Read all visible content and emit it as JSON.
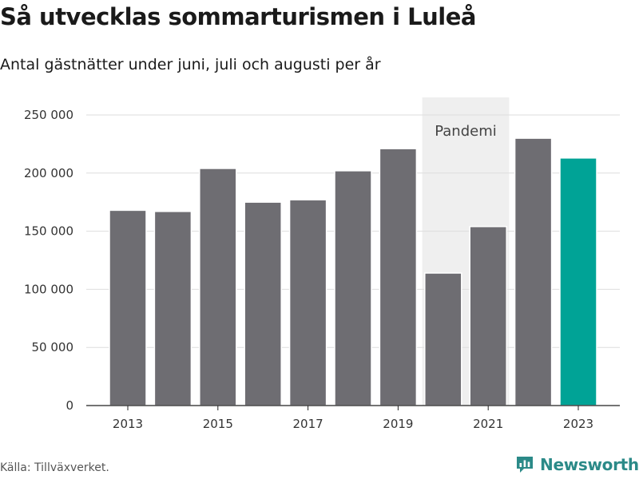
{
  "page": {
    "title": "Så utvecklas sommarturismen i Luleå",
    "subtitle": "Antal gästnätter under juni, juli och augusti per år",
    "source": "Källa: Tillväxverket.",
    "brand": "Newsworthy"
  },
  "colors": {
    "bar": "#6e6d72",
    "highlight": "#00a396",
    "shade": "#efefef",
    "grid": "#dedede",
    "brand": "#2b8a88"
  },
  "chart_data": {
    "type": "bar",
    "title": "Så utvecklas sommarturismen i Luleå",
    "subtitle": "Antal gästnätter under juni, juli och augusti per år",
    "categories": [
      2013,
      2014,
      2015,
      2016,
      2017,
      2018,
      2019,
      2020,
      2021,
      2022,
      2023
    ],
    "values": [
      168000,
      167000,
      204000,
      175000,
      177000,
      202000,
      221000,
      114000,
      154000,
      230000,
      213000
    ],
    "highlight_category": 2023,
    "ylim": [
      0,
      250000
    ],
    "yticks": [
      0,
      50000,
      100000,
      150000,
      200000,
      250000
    ],
    "ytick_labels": [
      "0",
      "50 000",
      "100 000",
      "150 000",
      "200 000",
      "250 000"
    ],
    "xticks": [
      2013,
      2015,
      2017,
      2019,
      2021,
      2023
    ],
    "xtick_labels": [
      "2013",
      "2015",
      "2017",
      "2019",
      "2021",
      "2023"
    ],
    "xlabel": "",
    "ylabel": "",
    "grid": true,
    "annotation": {
      "text": "Pandemi",
      "x_range": [
        2020,
        2021
      ]
    }
  }
}
